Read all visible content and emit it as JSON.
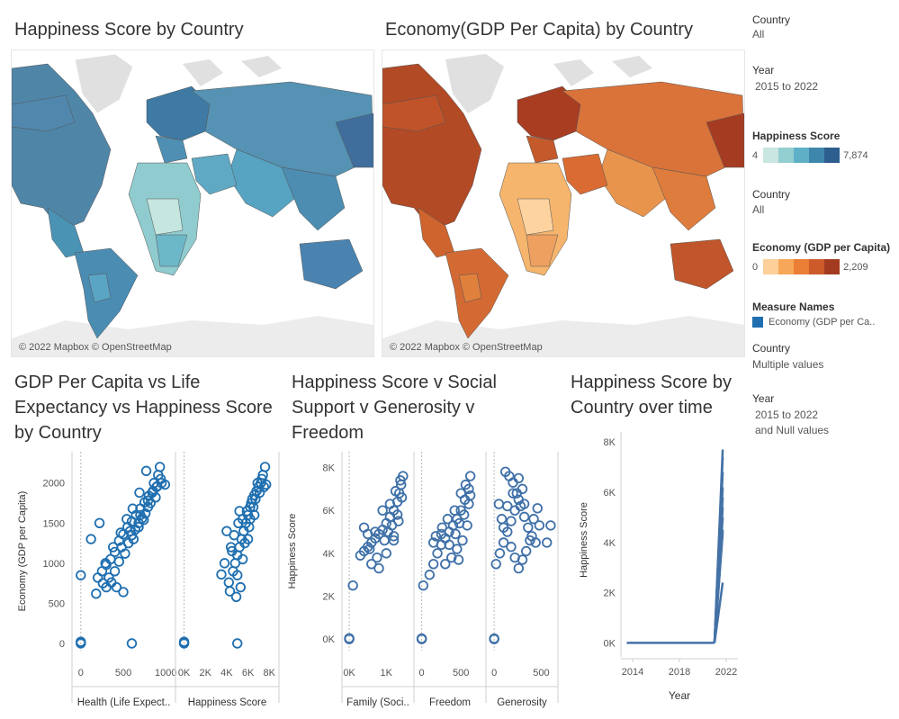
{
  "titles": {
    "map_happiness": "Happiness Score by Country",
    "map_economy": "Economy(GDP Per Capita) by Country",
    "scatter_gdp": [
      "GDP Per Capita  vs Life",
      "Expectancy vs Happiness Score",
      "by Country"
    ],
    "scatter_happy": [
      "Happiness Score v Social",
      "Support v Generosity v",
      "Freedom"
    ],
    "line_time": [
      "Happiness Score by",
      "Country over time"
    ]
  },
  "map_credit": "© 2022 Mapbox © OpenStreetMap",
  "legend": {
    "country1_title": "Country",
    "country1_value": "All",
    "year1_title": "Year",
    "year1_value": "2015 to 2022",
    "happiness_title": "Happiness Score",
    "happiness_min": "4",
    "happiness_max": "7,874",
    "happiness_colors": [
      "#c9e6e0",
      "#93cfd0",
      "#5fb0c6",
      "#3f86ad",
      "#2d5e8e"
    ],
    "country2_title": "Country",
    "country2_value": "All",
    "economy_title": "Economy (GDP per Capita)",
    "economy_min": "0",
    "economy_max": "2,209",
    "economy_colors": [
      "#fdcf99",
      "#f6a858",
      "#ea7e35",
      "#cd5a2a",
      "#a33b21"
    ],
    "measure_title": "Measure Names",
    "measure_item": "Economy (GDP per Ca..",
    "measure_color": "#1f6fb0",
    "country3_title": "Country",
    "country3_value": "Multiple values",
    "year2_title": "Year",
    "year2_value_1": "2015 to 2022",
    "year2_value_2": "and Null values"
  },
  "chart_data": [
    {
      "type": "scatter",
      "ylabel": "Economy (GDP per Capita)",
      "ylim": [
        0,
        2300
      ],
      "yticks": [
        "0",
        "500",
        "1000",
        "1500",
        "2000"
      ],
      "color": "#1f6fb0",
      "panels": [
        {
          "xlabel": "Health (Life Expect..",
          "xticks": [
            "0",
            "500",
            "1000"
          ],
          "xlim": [
            -40,
            1050
          ],
          "points": [
            [
              400,
              1140
            ],
            [
              450,
              1280
            ],
            [
              500,
              1360
            ],
            [
              550,
              1450
            ],
            [
              600,
              1520
            ],
            [
              650,
              1600
            ],
            [
              700,
              1680
            ],
            [
              750,
              1760
            ],
            [
              800,
              1840
            ],
            [
              850,
              1900
            ],
            [
              900,
              1960
            ],
            [
              950,
              2000
            ],
            [
              350,
              1050
            ],
            [
              300,
              980
            ],
            [
              250,
              900
            ],
            [
              200,
              820
            ],
            [
              360,
              760
            ],
            [
              420,
              700
            ],
            [
              500,
              640
            ],
            [
              180,
              620
            ],
            [
              120,
              1300
            ],
            [
              220,
              1500
            ],
            [
              0,
              850
            ],
            [
              580,
              1400
            ],
            [
              620,
              1300
            ],
            [
              680,
              1500
            ],
            [
              720,
              1560
            ],
            [
              760,
              1620
            ],
            [
              820,
              1750
            ],
            [
              880,
              1820
            ],
            [
              910,
              2100
            ],
            [
              930,
              2200
            ],
            [
              860,
              2000
            ],
            [
              790,
              1700
            ],
            [
              700,
              1600
            ],
            [
              640,
              1420
            ],
            [
              560,
              1250
            ],
            [
              480,
              1200
            ],
            [
              400,
              900
            ],
            [
              300,
              700
            ],
            [
              260,
              750
            ],
            [
              330,
              820
            ],
            [
              450,
              1020
            ],
            [
              520,
              1120
            ],
            [
              600,
              1350
            ],
            [
              680,
              1450
            ],
            [
              740,
              1540
            ],
            [
              790,
              1780
            ],
            [
              840,
              1880
            ],
            [
              890,
              1950
            ],
            [
              940,
              2050
            ],
            [
              990,
              1980
            ],
            [
              770,
              2150
            ],
            [
              690,
              1880
            ],
            [
              610,
              1680
            ],
            [
              540,
              1550
            ],
            [
              470,
              1380
            ],
            [
              380,
              1200
            ],
            [
              290,
              1000
            ],
            [
              0,
              0
            ],
            [
              0,
              10
            ],
            [
              0,
              20
            ],
            [
              600,
              0
            ]
          ]
        },
        {
          "xlabel": "Happiness Score",
          "xticks": [
            "0K",
            "2K",
            "4K",
            "6K",
            "8K"
          ],
          "xlim": [
            -300,
            8400
          ],
          "points": [
            [
              4200,
              760
            ],
            [
              4600,
              900
            ],
            [
              4800,
              1000
            ],
            [
              5000,
              1100
            ],
            [
              5200,
              1200
            ],
            [
              5400,
              1300
            ],
            [
              5600,
              1400
            ],
            [
              5800,
              1500
            ],
            [
              6000,
              1600
            ],
            [
              6200,
              1700
            ],
            [
              6400,
              1800
            ],
            [
              6600,
              1850
            ],
            [
              6800,
              1900
            ],
            [
              7000,
              1950
            ],
            [
              7200,
              2000
            ],
            [
              7400,
              2100
            ],
            [
              7600,
              2200
            ],
            [
              3800,
              1000
            ],
            [
              4400,
              1200
            ],
            [
              4700,
              1350
            ],
            [
              5100,
              1500
            ],
            [
              5500,
              1550
            ],
            [
              5900,
              1650
            ],
            [
              6300,
              1750
            ],
            [
              6700,
              1800
            ],
            [
              7100,
              1880
            ],
            [
              7500,
              1950
            ],
            [
              4000,
              1400
            ],
            [
              4300,
              650
            ],
            [
              4900,
              580
            ],
            [
              5300,
              700
            ],
            [
              5700,
              1250
            ],
            [
              6100,
              1450
            ],
            [
              6500,
              1700
            ],
            [
              6900,
              2000
            ],
            [
              7300,
              2050
            ],
            [
              7700,
              1980
            ],
            [
              5000,
              850
            ],
            [
              5500,
              1050
            ],
            [
              6000,
              1300
            ],
            [
              6200,
              1550
            ],
            [
              6600,
              1600
            ],
            [
              5200,
              1650
            ],
            [
              4500,
              1150
            ],
            [
              3500,
              860
            ],
            [
              0,
              0
            ],
            [
              0,
              20
            ],
            [
              0,
              10
            ],
            [
              5000,
              0
            ]
          ]
        }
      ]
    },
    {
      "type": "scatter",
      "ylabel": "Happiness Score",
      "ylim": [
        -200,
        8400
      ],
      "yticks": [
        "0K",
        "2K",
        "4K",
        "6K",
        "8K"
      ],
      "color": "#3f70a8",
      "panels": [
        {
          "xlabel": "Family (Soci..",
          "xticks": [
            "0K",
            "1K"
          ],
          "xlim": [
            -50,
            1600
          ],
          "points": [
            [
              100,
              2500
            ],
            [
              300,
              3900
            ],
            [
              400,
              4100
            ],
            [
              500,
              4300
            ],
            [
              600,
              4500
            ],
            [
              700,
              4700
            ],
            [
              800,
              4900
            ],
            [
              900,
              5100
            ],
            [
              1000,
              5400
            ],
            [
              1100,
              5700
            ],
            [
              1200,
              6000
            ],
            [
              1300,
              6400
            ],
            [
              1350,
              6800
            ],
            [
              1400,
              7200
            ],
            [
              1450,
              7600
            ],
            [
              600,
              3500
            ],
            [
              800,
              3300
            ],
            [
              1000,
              4000
            ],
            [
              1200,
              4600
            ],
            [
              1300,
              5800
            ],
            [
              900,
              6000
            ],
            [
              700,
              5000
            ],
            [
              500,
              4900
            ],
            [
              400,
              5200
            ],
            [
              1100,
              6300
            ],
            [
              1250,
              6900
            ],
            [
              1380,
              7400
            ],
            [
              1420,
              6600
            ],
            [
              1150,
              5300
            ],
            [
              950,
              4600
            ],
            [
              750,
              3800
            ],
            [
              550,
              4200
            ],
            [
              1050,
              5000
            ],
            [
              1330,
              5500
            ],
            [
              1200,
              4800
            ],
            [
              0,
              0
            ],
            [
              0,
              40
            ],
            [
              0,
              20
            ]
          ]
        },
        {
          "xlabel": "Freedom",
          "xticks": [
            "0",
            "500"
          ],
          "xlim": [
            -30,
            750
          ],
          "points": [
            [
              20,
              2500
            ],
            [
              100,
              3000
            ],
            [
              150,
              3500
            ],
            [
              200,
              4000
            ],
            [
              250,
              4400
            ],
            [
              300,
              4700
            ],
            [
              350,
              5000
            ],
            [
              400,
              5300
            ],
            [
              450,
              5600
            ],
            [
              500,
              6000
            ],
            [
              550,
              6500
            ],
            [
              600,
              7000
            ],
            [
              620,
              7600
            ],
            [
              180,
              4800
            ],
            [
              260,
              5200
            ],
            [
              330,
              5600
            ],
            [
              420,
              6000
            ],
            [
              500,
              6800
            ],
            [
              560,
              7200
            ],
            [
              380,
              3800
            ],
            [
              450,
              4200
            ],
            [
              520,
              4600
            ],
            [
              300,
              3500
            ],
            [
              480,
              5400
            ],
            [
              540,
              5800
            ],
            [
              600,
              6300
            ],
            [
              250,
              4900
            ],
            [
              150,
              4500
            ],
            [
              350,
              4400
            ],
            [
              430,
              4900
            ],
            [
              580,
              5300
            ],
            [
              620,
              6700
            ],
            [
              470,
              3700
            ],
            [
              0,
              0
            ],
            [
              0,
              30
            ],
            [
              0,
              10
            ]
          ]
        },
        {
          "xlabel": "Generosity",
          "xticks": [
            "0",
            "500"
          ],
          "xlim": [
            -30,
            620
          ],
          "points": [
            [
              20,
              3500
            ],
            [
              60,
              4000
            ],
            [
              100,
              4500
            ],
            [
              140,
              5000
            ],
            [
              180,
              5500
            ],
            [
              220,
              6000
            ],
            [
              260,
              6500
            ],
            [
              300,
              7000
            ],
            [
              120,
              7800
            ],
            [
              160,
              7600
            ],
            [
              200,
              7300
            ],
            [
              240,
              6800
            ],
            [
              280,
              6200
            ],
            [
              320,
              5700
            ],
            [
              360,
              5200
            ],
            [
              400,
              4800
            ],
            [
              440,
              4500
            ],
            [
              480,
              5300
            ],
            [
              560,
              4500
            ],
            [
              600,
              5300
            ],
            [
              80,
              5600
            ],
            [
              140,
              6200
            ],
            [
              180,
              4300
            ],
            [
              220,
              3800
            ],
            [
              260,
              3300
            ],
            [
              300,
              3700
            ],
            [
              340,
              4100
            ],
            [
              380,
              4600
            ],
            [
              420,
              5600
            ],
            [
              460,
              6100
            ],
            [
              50,
              6300
            ],
            [
              100,
              5200
            ],
            [
              200,
              6800
            ],
            [
              260,
              7500
            ],
            [
              320,
              6300
            ],
            [
              0,
              0
            ],
            [
              0,
              30
            ],
            [
              0,
              10
            ]
          ]
        }
      ]
    },
    {
      "type": "line",
      "xlabel": "Year",
      "ylabel": "Happiness Score",
      "xticks": [
        "2014",
        "2018",
        "2022"
      ],
      "xlim": [
        2013,
        2023
      ],
      "yticks": [
        "0K",
        "2K",
        "4K",
        "6K",
        "8K"
      ],
      "ylim": [
        -200,
        8400
      ],
      "color": "#4472a6",
      "baseline": {
        "x": [
          2013.5,
          2021
        ],
        "y": [
          0,
          0
        ]
      },
      "series_end_year": 2021.7,
      "series_end_values": [
        7700,
        7400,
        6800,
        6200,
        5800,
        5400,
        5000,
        4500,
        4400,
        2400
      ]
    }
  ]
}
